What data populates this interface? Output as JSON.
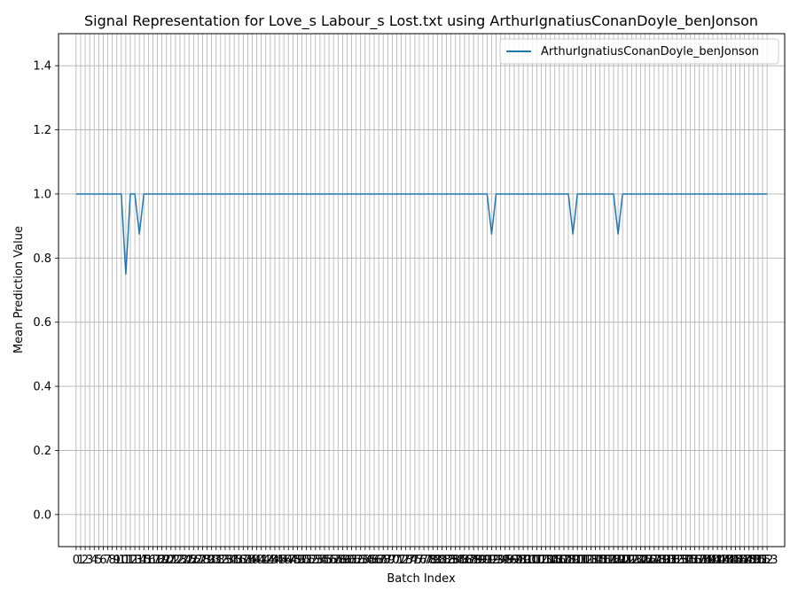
{
  "chart_data": {
    "type": "line",
    "title": "Signal Representation for Love_s Labour_s Lost.txt using ArthurIgnatiusConanDoyle_benJonson",
    "xlabel": "Batch Index",
    "ylabel": "Mean Prediction Value",
    "xlim": [
      -3.9,
      156.9
    ],
    "ylim": [
      -0.1,
      1.5
    ],
    "yticks": [
      0.0,
      0.2,
      0.4,
      0.6,
      0.8,
      1.0,
      1.2,
      1.4
    ],
    "x_first": 0,
    "x_last": 153,
    "grid": true,
    "legend_position": "top-right",
    "color": "#1f77b4",
    "series": [
      {
        "name": "ArthurIgnatiusConanDoyle_benJonson",
        "dips": [
          {
            "x": 11,
            "y": 0.75
          },
          {
            "x": 14,
            "y": 0.875
          },
          {
            "x": 92,
            "y": 0.875
          },
          {
            "x": 110,
            "y": 0.875
          },
          {
            "x": 120,
            "y": 0.875
          }
        ],
        "baseline": 1.0
      }
    ]
  }
}
